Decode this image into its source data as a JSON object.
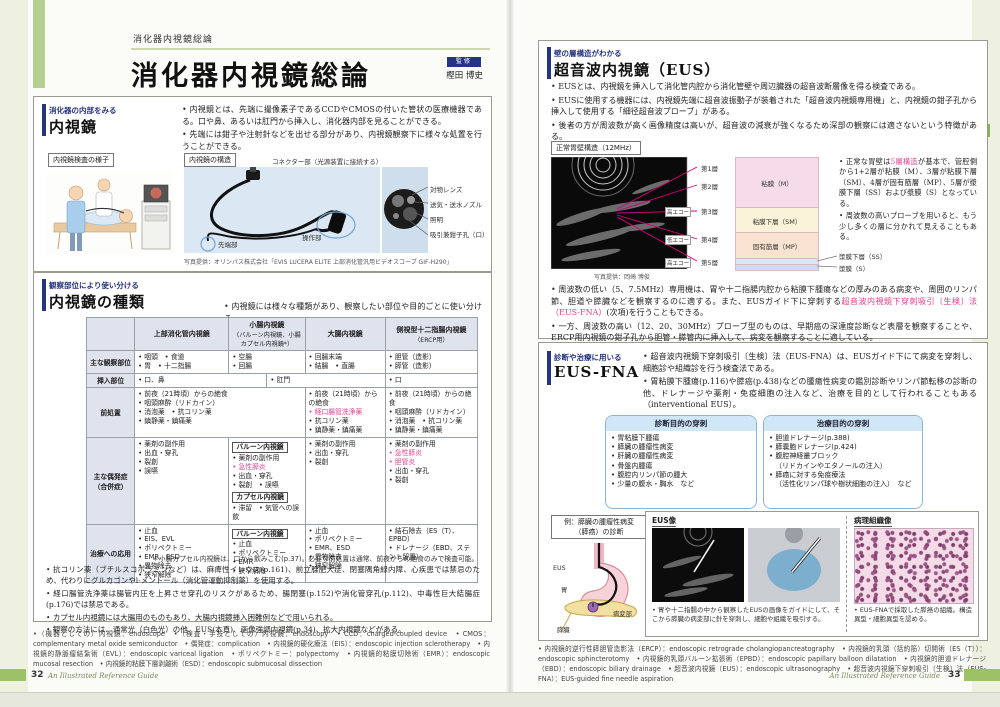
{
  "colors": {
    "accent_pink": "#e0418f",
    "navy": "#27357e",
    "green_tab": "#83b84e",
    "table_head": "#dfe3ee"
  },
  "edge": {
    "tab1": "消化器内視鏡総論",
    "tab2": "消化器内視鏡総論"
  },
  "left": {
    "chapter": "消化器内視鏡総論",
    "title": "消化器内視鏡総論",
    "author_badge": "監修",
    "author": "樫田 博史",
    "page": "32",
    "brand": "An Illustrated Reference Guide",
    "s1": {
      "tagline": "消化器の内部をみる",
      "heading": "内視鏡",
      "bullets": [
        "内視鏡とは、先端に撮像素子であるCCDやCMOSの付いた管状の医療機器である。口や鼻、あるいは肛門から挿入し、消化器内部を見ることができる。",
        "先端には鉗子や注射針などを出せる部分があり、内視鏡観察下に様々な処置を行うことができる。"
      ],
      "fig1": "内視鏡検査の様子",
      "fig2": "内視鏡の構造",
      "callout_connector": "コネクター部（光源装置に接続する）",
      "callouts": [
        "対物レンズ",
        "送気・送水ノズル",
        "照明",
        "吸引兼鉗子孔（口）"
      ],
      "label_tip": "先端部",
      "label_control": "操作部",
      "credit": "写真提供：オリンパス株式会社「EVIS LUCERA ELITE 上部消化管汎用ビデオスコープ GIF-H290」"
    },
    "s2": {
      "tagline": "観察部位により使い分ける",
      "heading": "内視鏡の種類",
      "intro": "内視鏡には様々な種類があり、観察したい部位や目的ごとに使い分ける。",
      "table": {
        "h1": "上部消化管内視鏡",
        "h2a": "小腸内視鏡",
        "h2b": "（バルーン内視鏡、小腸カプセル内視鏡*）",
        "h3": "大腸内視鏡",
        "h4a": "側視型十二指腸内視鏡",
        "h4b": "（ERCP用）",
        "r_obs": "主な観察部位",
        "r_ins": "挿入部位",
        "r_pre": "前処置",
        "r_comp": "主な偶発症（合併症）",
        "r_ther": "治療への応用",
        "obs1": [
          "咽頭　• 食道",
          "胃　• 十二指腸"
        ],
        "obs2": [
          "空腸",
          "回腸"
        ],
        "obs3": [
          "回腸末端",
          "結腸　• 直腸"
        ],
        "obs4": [
          "胆管（造影）",
          "膵管（造影）"
        ],
        "ins12": [
          "口、鼻"
        ],
        "ins23": [
          "肛門"
        ],
        "ins4": [
          "口"
        ],
        "pre12": [
          "前夜（21時頃）からの絶食",
          "咽頭麻酔（リドカイン）",
          "消泡薬　• 抗コリン薬",
          "鎮静薬・鎮痛薬"
        ],
        "pre3": [
          "前夜（21時頃）からの絶食",
          {
            "t": "経口腸管洗浄薬",
            "cls": "pink"
          },
          "抗コリン薬",
          "鎮静薬・鎮痛薬"
        ],
        "pre4": [
          "前夜（21時頃）からの絶食",
          "咽頭麻酔（リドカイン）",
          "消泡薬　• 抗コリン薬",
          "鎮静薬・鎮痛薬"
        ],
        "comp1": [
          "薬剤の副作用",
          "出血・穿孔",
          "裂創",
          "誤嚥"
        ],
        "comp2": [
          {
            "t": "バルーン内視鏡",
            "cls": "boxlbl"
          },
          "薬剤の副作用",
          {
            "t": "急性膵炎",
            "cls": "pink"
          },
          "出血・穿孔",
          "裂創　• 誤嚥",
          {
            "t": "カプセル内視鏡",
            "cls": "boxlbl"
          },
          "滞留　• 気管への誤飲"
        ],
        "comp3": [
          "薬剤の副作用",
          "出血・穿孔",
          "裂創"
        ],
        "comp4": [
          "薬剤の副作用",
          {
            "t": "急性膵炎",
            "cls": "pink"
          },
          {
            "t": "胆管炎",
            "cls": "pink"
          },
          "出血・穿孔",
          "裂創"
        ],
        "ther1": [
          "止血",
          "EIS、EVL",
          "ポリペクトミー",
          "EMR、ESD",
          "異物除去",
          "狭窄解除"
        ],
        "ther2": [
          {
            "t": "バルーン内視鏡",
            "cls": "boxlbl"
          },
          "止血",
          "ポリペクトミー",
          "EMR",
          "狭窄解除"
        ],
        "ther3": [
          "止血",
          "ポリペクトミー",
          "EMR、ESD",
          "異物除去",
          "狭窄解除"
        ],
        "ther4": [
          "結石除去（ES（T）、EPBD）",
          "ドレナージ（EBD、ステント留置）"
        ]
      },
      "footnote": "＊小腸カプセル内視鏡は、口から飲みこむ(p.37)。必要な前処置は通常、前夜からの絶食のみで検査可能。",
      "bullets": [
        "抗コリン薬（ブチルスコポラミンなど）は、麻痺性イレウス(p.161)、前立腺肥大症、閉塞隅角緑内障、心疾患では禁忌のため、代わりにグルカゴンやl-メントール（消化管運動抑制薬）を使用する。",
        "経口腸管洗浄薬は腸管内圧を上昇させ穿孔のリスクがあるため、腸閉塞(p.152)や消化管穿孔(p.112)、中毒性巨大結腸症(p.176)では禁忌である。",
        "カプセル内視鏡には大腸用のものもあり、大腸内視鏡挿入困難例などで用いられる。",
        "観察の方法には、通常光（白色光）の他、EUS(本頁)、画像強調内視鏡(p.34)、拡大内視鏡などがある。"
      ]
    },
    "glossary": "•（機器としての）内視鏡：endoscope　•（検査・手技としての）内視鏡：endoscopy　• CCD：charged-coupled device　• CMOS：complementary metal oxide semiconductor　• 偶発症：complication　• 内視鏡的硬化療法（EIS）：endoscopic injection sclerotherapy　• 内視鏡的静脈瘤結紮術（EVL）：endoscopic variceal ligation　• ポリペクトミー：polypectomy　• 内視鏡的粘膜切除術（EMR）：endoscopic mucosal resection　• 内視鏡的粘膜下層剥離術（ESD）：endoscopic submucosal dissection"
  },
  "right": {
    "page": "33",
    "brand": "An Illustrated Reference Guide",
    "s1": {
      "tagline": "壁の層構造がわかる",
      "heading": "超音波内視鏡（EUS）",
      "bullets": [
        "EUSとは、内視鏡を挿入して消化管内腔から消化管壁や周辺臓器の超音波断層像を得る検査である。",
        "EUSに使用する機器には、内視鏡先端に超音波振動子が装着された「超音波内視鏡専用機」と、内視鏡の鉗子孔から挿入して使用する「細径超音波プローブ」がある。",
        "後者の方が周波数が高く画像精度は高いが、超音波の減衰が強くなるため深部の観察には適さないという特徴がある。"
      ],
      "figlab": "正常胃壁構造（12MHz）",
      "layers": {
        "l1": "第1層",
        "l2": "第2層",
        "l3": "第3層",
        "l4": "第4層",
        "l5": "第5層",
        "m": "粘膜（M）",
        "sm": "粘膜下層（SM）",
        "mp": "固有筋層（MP）",
        "ss": "漿膜下層（SS）",
        "s": "漿膜（S）",
        "tag3": "高エコー",
        "tag4": "低エコー",
        "tag5": "高エコー"
      },
      "side_b1": [
        {
          "t": "正常な胃壁は"
        },
        {
          "t": "5層構造",
          "cls": "pink"
        },
        {
          "t": "が基本で、管腔側から1+2層が粘膜（M）、3層が粘膜下層（SM）、4層が固有筋層（MP）、5層が漿膜下層（SS）および漿膜（S）となっている。"
        }
      ],
      "side_b2": "周波数の高いプローブを用いると、もう少し多くの層に分かれて見えることもある。",
      "credit": "写真提供：岡崎 博俊",
      "lower_b1": [
        {
          "t": "周波数の低い（5、7.5MHz）専用機は、胃や十二指腸内腔から粘膜下腫瘍などの厚みのある病変や、周囲のリンパ節、胆道や膵臓などを観察するのに適する。また、EUSガイド下に穿刺する"
        },
        {
          "t": "超音波内視鏡下穿刺吸引〔生検〕法（EUS-FNA）",
          "cls": "pink"
        },
        {
          "t": "(次項)を行うこともできる。"
        }
      ],
      "lower_b2": "一方、周波数の高い（12、20、30MHz）プローブ型のものは、早期癌の深達度診断など表層を観察することや、ERCP用内視鏡の鉗子孔から胆管・膵管内に挿入して、病変を観察することに適している。"
    },
    "s2": {
      "tagline": "診断や治療に用いる",
      "heading": "EUS-FNA",
      "bullets": [
        "超音波内視鏡下穿刺吸引〔生検〕法（EUS-FNA）は、EUSガイド下にて病変を穿刺し、細胞診や組織診を行う検査法である。",
        "胃粘膜下腫瘍(p.116)や膵癌(p.438)などの腫瘍性病変の鑑別診断やリンパ節転移の診断の他、ドレナージや薬剤・免疫細胞の注入など、治療を目的として行われることもある（interventional EUS）。"
      ],
      "box_dx": {
        "title": "診断目的の穿刺",
        "items": [
          "胃粘膜下腫瘍",
          "膵臓の腫瘤性病変",
          "肝臓の腫瘤性病変",
          "骨盤内腫瘍",
          "腹腔内リンパ節の腫大",
          "少量の腹水・胸水　など"
        ]
      },
      "box_tx": {
        "title": "治療目的の穿刺",
        "items": [
          "胆道ドレナージ(p.388)",
          "膵嚢胞ドレナージ(p.424)",
          "腹腔神経叢ブロック",
          {
            "t": "（リドカインやエタノールの注入）",
            "cls": "sub"
          },
          "膵癌に対する免疫療法",
          {
            "t": "（活性化リンパ球や樹状細胞の注入）　など",
            "cls": "sub"
          }
        ]
      },
      "example": {
        "label_l1": "例：膵臓の腫瘤性病変",
        "label_l2": "（膵癌）の診断",
        "anat": {
          "eus": "EUS",
          "stomach": "胃",
          "lesion": "病変部",
          "pancreas": "膵臓"
        },
        "eus_label": "EUS像",
        "patho_label": "病理組織像",
        "eus_caption": "胃や十二指腸の中から観察したEUSの画像をガイドにして、そこから膵臓の病変部に針を穿刺し、細胞や組織を吸引する。",
        "patho_caption": "EUS-FNAで採取した膵癌の組織。構造異型・細胞異型を認める。"
      }
    },
    "glossary": "• 内視鏡的逆行性膵胆管造影法（ERCP）：endoscopic retrograde cholangiopancreatography　• 内視鏡的乳頭（括約筋）切開術（ES（T））：endoscopic sphincterotomy　• 内視鏡的乳頭バルーン拡張術（EPBD）：endoscopic papillary balloon dilatation　• 内視鏡的胆道ドレナージ（EBD）：endoscopic biliary drainage　• 超音波内視鏡（EUS）：endoscopic ultrasonography　• 超音波内視鏡下穿刺吸引〔生検〕法（EUS-FNA）：EUS-guided fine needle aspiration"
  }
}
